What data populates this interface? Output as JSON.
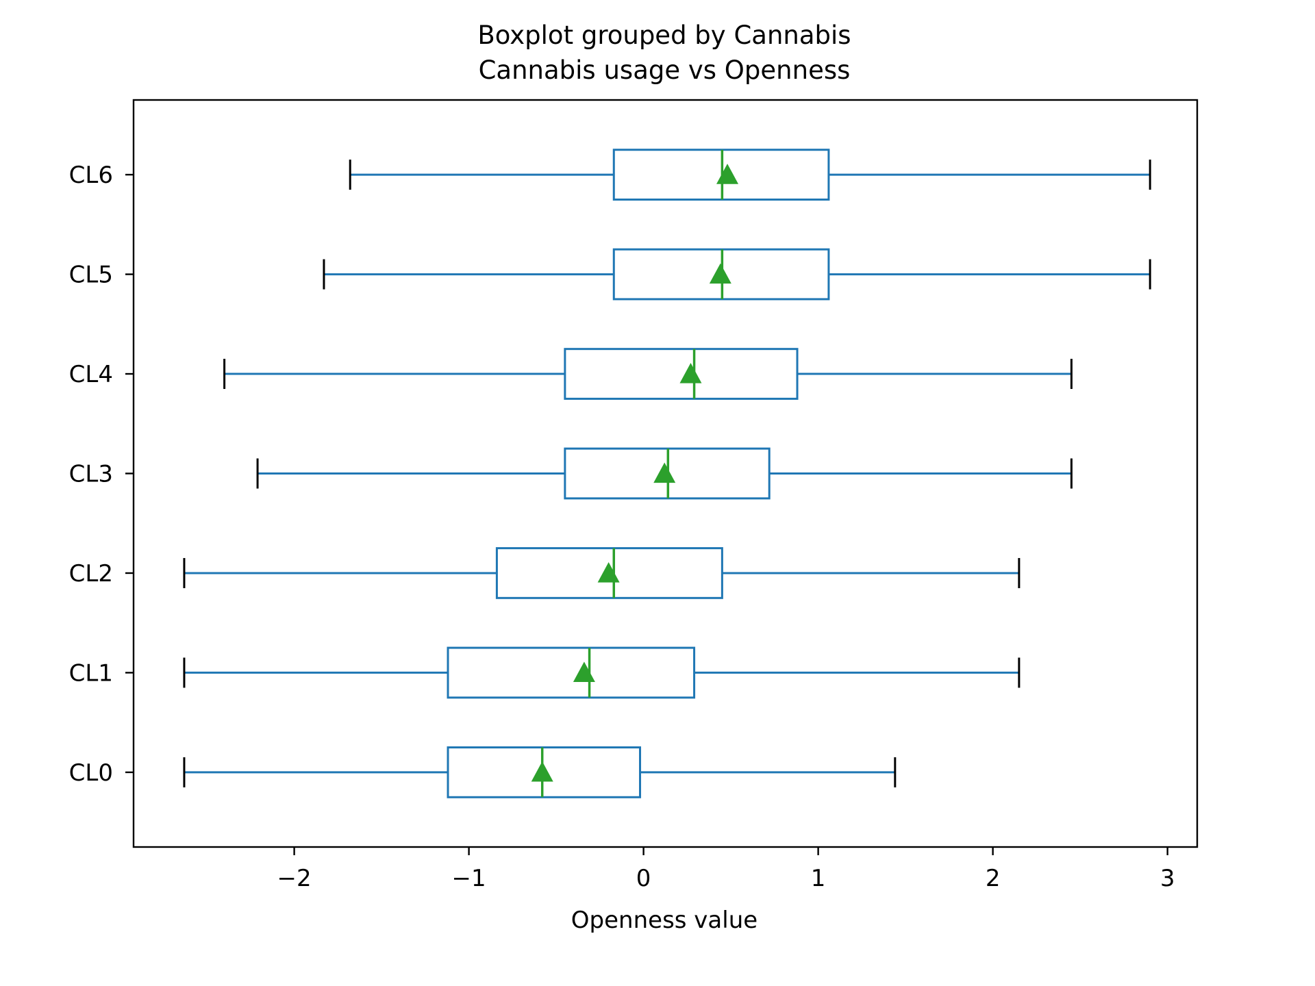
{
  "chart_data": {
    "type": "boxplot",
    "orientation": "horizontal",
    "title": "Boxplot grouped by Cannabis",
    "subtitle": "Cannabis usage vs Openness",
    "xlabel": "Openness value",
    "ylabel": "",
    "xlim": [
      -2.92,
      3.17
    ],
    "xticks": [
      -2,
      -1,
      0,
      1,
      2,
      3
    ],
    "xtick_labels": [
      "−2",
      "−1",
      "0",
      "1",
      "2",
      "3"
    ],
    "categories": [
      "CL0",
      "CL1",
      "CL2",
      "CL3",
      "CL4",
      "CL5",
      "CL6"
    ],
    "boxes": [
      {
        "label": "CL0",
        "whislo": -2.63,
        "q1": -1.12,
        "median": -0.58,
        "q3": -0.02,
        "whishi": 1.44,
        "mean": -0.58
      },
      {
        "label": "CL1",
        "whislo": -2.63,
        "q1": -1.12,
        "median": -0.31,
        "q3": 0.29,
        "whishi": 2.15,
        "mean": -0.34
      },
      {
        "label": "CL2",
        "whislo": -2.63,
        "q1": -0.84,
        "median": -0.17,
        "q3": 0.45,
        "whishi": 2.15,
        "mean": -0.2
      },
      {
        "label": "CL3",
        "whislo": -2.21,
        "q1": -0.45,
        "median": 0.14,
        "q3": 0.72,
        "whishi": 2.45,
        "mean": 0.12
      },
      {
        "label": "CL4",
        "whislo": -2.4,
        "q1": -0.45,
        "median": 0.29,
        "q3": 0.88,
        "whishi": 2.45,
        "mean": 0.27
      },
      {
        "label": "CL5",
        "whislo": -1.83,
        "q1": -0.17,
        "median": 0.45,
        "q3": 1.06,
        "whishi": 2.9,
        "mean": 0.44
      },
      {
        "label": "CL6",
        "whislo": -1.68,
        "q1": -0.17,
        "median": 0.45,
        "q3": 1.06,
        "whishi": 2.9,
        "mean": 0.48
      }
    ],
    "colors": {
      "box": "#1f77b4",
      "median": "#2ca02c",
      "mean_marker": "#2ca02c",
      "whisker_cap": "#000000",
      "axes": "#000000"
    },
    "mean_marker": "triangle",
    "grid": false,
    "legend": "none"
  }
}
